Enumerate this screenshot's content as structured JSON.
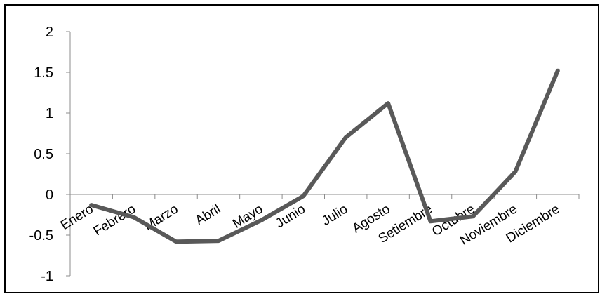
{
  "chart_data": {
    "type": "line",
    "title": "",
    "xlabel": "",
    "ylabel": "",
    "categories": [
      "Enero",
      "Febrero",
      "Marzo",
      "Abril",
      "Mayo",
      "Junio",
      "Julio",
      "Agosto",
      "Setiembre",
      "Octubre",
      "Noviembre",
      "Diciembre"
    ],
    "series": [
      {
        "values": [
          -0.13,
          -0.28,
          -0.58,
          -0.57,
          -0.32,
          -0.02,
          0.7,
          1.12,
          -0.33,
          -0.27,
          0.28,
          1.52
        ]
      }
    ],
    "ylim": [
      -1,
      2
    ],
    "yticks": [
      -1,
      -0.5,
      0,
      0.5,
      1,
      1.5,
      2
    ],
    "ytick_labels": [
      "-1",
      "-0.5",
      "0",
      "0.5",
      "1",
      "1.5",
      "2"
    ],
    "grid": false,
    "legend": "none",
    "line_color": "#595959"
  }
}
